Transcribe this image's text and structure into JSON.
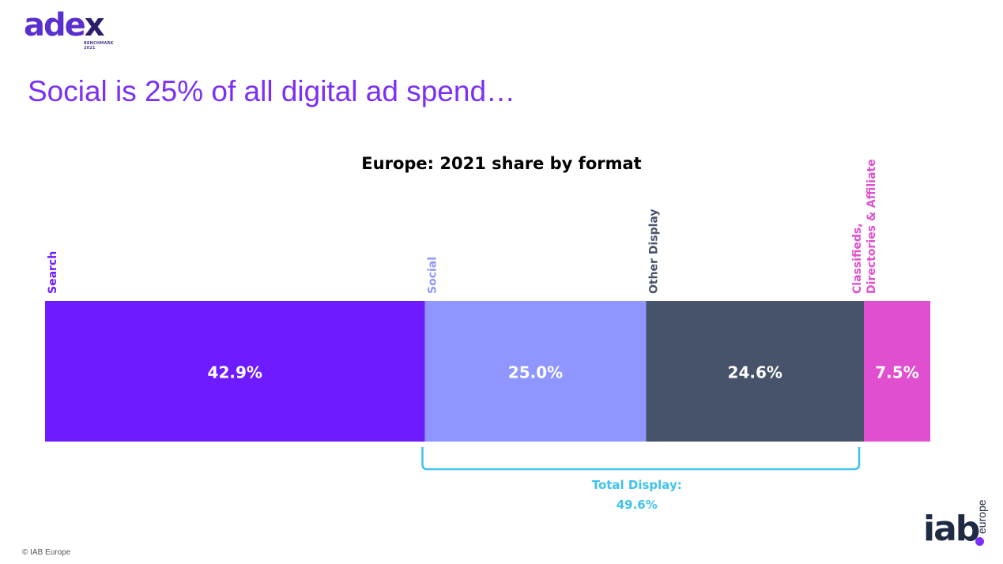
{
  "branding": {
    "logo_text": "adex",
    "logo_subtext": "BENCHMARK 2021",
    "logo_color": "#5a2fd0",
    "logo_x_color": "#2b1f6b",
    "footer": "© IAB Europe",
    "iab_text": "iab",
    "iab_subtext": "europe",
    "iab_color": "#1f2a44",
    "iab_dot_color": "#7b2ff7"
  },
  "headline": {
    "text": "Social is 25% of all digital ad spend…",
    "color": "#7b2ff7"
  },
  "chart_data": {
    "type": "bar",
    "orientation": "horizontal-stacked",
    "title": "Europe: 2021 share by format",
    "xlabel": "",
    "ylabel": "",
    "xlim": [
      0,
      100
    ],
    "grid": false,
    "legend": "none",
    "series": [
      {
        "name": "Search",
        "value": 42.9,
        "label": "42.9%",
        "color": "#6e1bff",
        "text_color": "#ffffff"
      },
      {
        "name": "Social",
        "value": 25.0,
        "label": "25.0%",
        "color": "#8f96ff",
        "text_color": "#ffffff"
      },
      {
        "name": "Other Display",
        "value": 24.6,
        "label": "24.6%",
        "color": "#46536a",
        "text_color": "#ffffff"
      },
      {
        "name": "Classifieds, Directories & Affiliate",
        "name_lines": [
          "Classifieds,",
          "Directories & Affiliate"
        ],
        "value": 7.5,
        "label": "7.5%",
        "color": "#e04fd0",
        "text_color": "#ffffff"
      }
    ],
    "category_label_colors": [
      "#6e1bff",
      "#8f96ff",
      "#46536a",
      "#e04fd0"
    ],
    "annotations": [
      {
        "type": "bracket",
        "from_series": 1,
        "to_series": 2,
        "lines": [
          "Total Display:",
          "49.6%"
        ],
        "value": 49.6,
        "color": "#3fc2f0"
      }
    ]
  }
}
